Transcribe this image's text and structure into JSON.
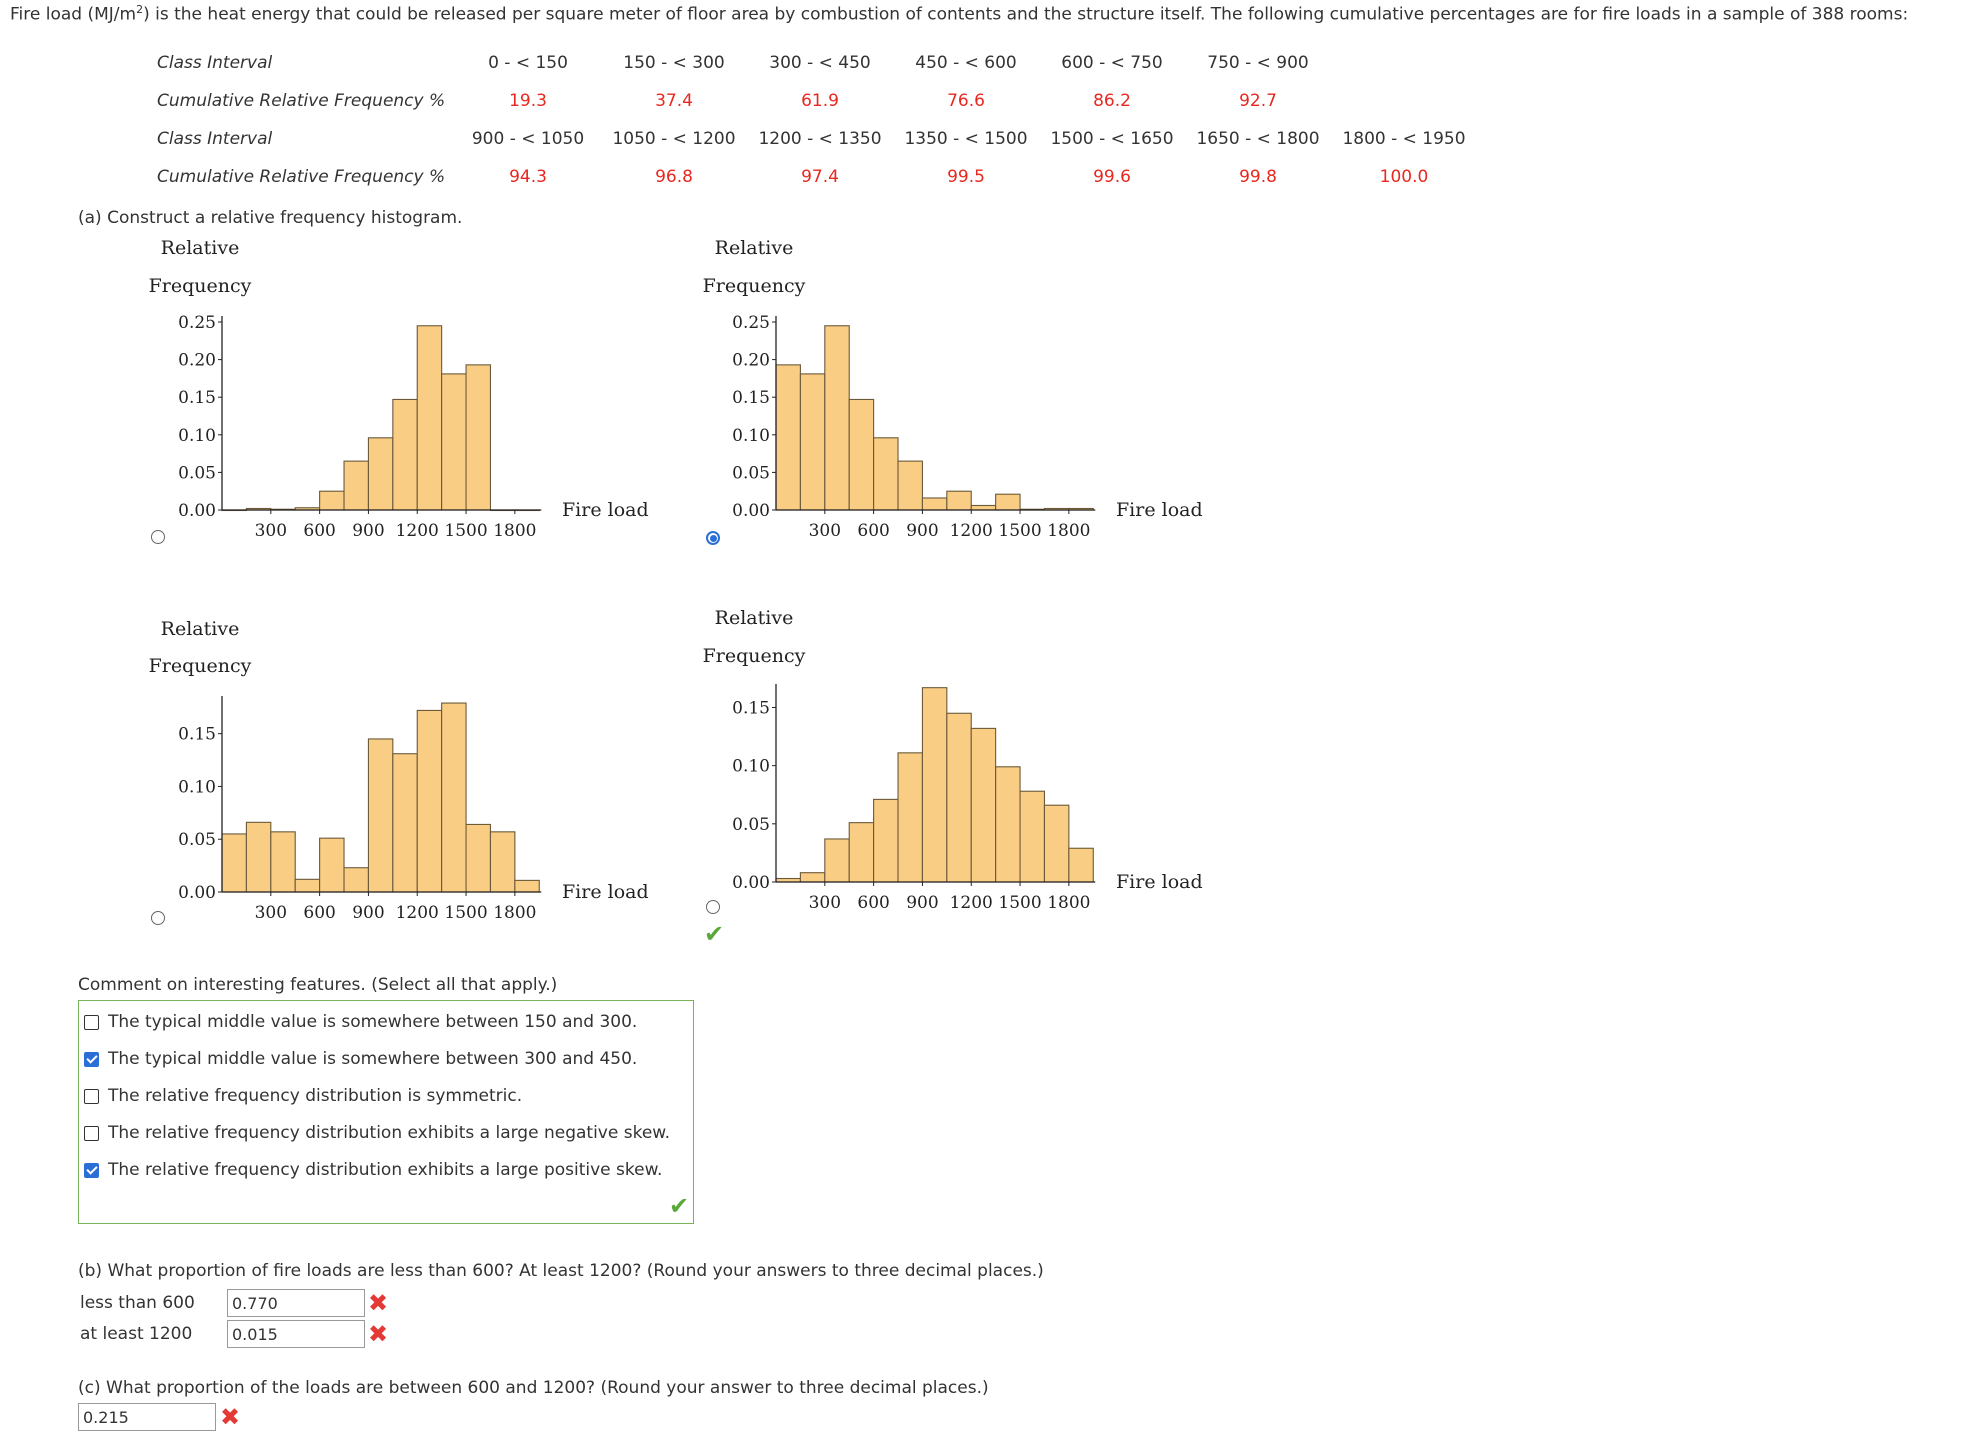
{
  "intro": {
    "before": "Fire load (MJ/m",
    "sup": "2",
    "after": ") is the heat energy that could be released per square meter of floor area by combustion of contents and the structure itself. The following cumulative percentages are for fire loads in a sample of 388 rooms:"
  },
  "table": {
    "class_interval_label": "Class Interval",
    "cum_freq_label": "Cumulative Relative Frequency %",
    "row1_intervals": [
      "0 - < 150",
      "150 - < 300",
      "300 - < 450",
      "450 - < 600",
      "600 - < 750",
      "750 - < 900"
    ],
    "row1_values": [
      "19.3",
      "37.4",
      "61.9",
      "76.6",
      "86.2",
      "92.7"
    ],
    "row2_intervals": [
      "900 - < 1050",
      "1050 - < 1200",
      "1200 - < 1350",
      "1350 - < 1500",
      "1500 - < 1650",
      "1650 - < 1800",
      "1800 - < 1950"
    ],
    "row2_values": [
      "94.3",
      "96.8",
      "97.4",
      "99.5",
      "99.6",
      "99.8",
      "100.0"
    ],
    "value_color": "#e8281f"
  },
  "part_a": {
    "question": "(a) Construct a relative frequency histogram.",
    "selected_option": 2,
    "correct_option": 4
  },
  "chart_data": [
    {
      "type": "bar",
      "option": 1,
      "ylabel_line1": "Relative",
      "ylabel_line2": "Frequency",
      "xlabel": "Fire load",
      "bin_edges": [
        0,
        150,
        300,
        450,
        600,
        750,
        900,
        1050,
        1200,
        1350,
        1500,
        1650,
        1800,
        1950
      ],
      "values": [
        0.0,
        0.002,
        0.001,
        0.003,
        0.025,
        0.065,
        0.096,
        0.147,
        0.245,
        0.181,
        0.193,
        0.0,
        0.0
      ],
      "ylim": [
        0,
        0.25
      ],
      "yticks": [
        "0.00",
        "0.05",
        "0.10",
        "0.15",
        "0.20",
        "0.25"
      ],
      "xticks": [
        "300",
        "600",
        "900",
        "1200",
        "1500",
        "1800"
      ],
      "color": "#f9cd84"
    },
    {
      "type": "bar",
      "option": 2,
      "ylabel_line1": "Relative",
      "ylabel_line2": "Frequency",
      "xlabel": "Fire load",
      "bin_edges": [
        0,
        150,
        300,
        450,
        600,
        750,
        900,
        1050,
        1200,
        1350,
        1500,
        1650,
        1800,
        1950
      ],
      "values": [
        0.193,
        0.181,
        0.245,
        0.147,
        0.096,
        0.065,
        0.016,
        0.025,
        0.006,
        0.021,
        0.001,
        0.002,
        0.002
      ],
      "ylim": [
        0,
        0.25
      ],
      "yticks": [
        "0.00",
        "0.05",
        "0.10",
        "0.15",
        "0.20",
        "0.25"
      ],
      "xticks": [
        "300",
        "600",
        "900",
        "1200",
        "1500",
        "1800"
      ],
      "color": "#f9cd84"
    },
    {
      "type": "bar",
      "option": 3,
      "ylabel_line1": "Relative",
      "ylabel_line2": "Frequency",
      "xlabel": "Fire load",
      "bin_edges": [
        0,
        150,
        300,
        450,
        600,
        750,
        900,
        1050,
        1200,
        1350,
        1500,
        1650,
        1800,
        1950
      ],
      "values": [
        0.055,
        0.066,
        0.057,
        0.012,
        0.051,
        0.023,
        0.145,
        0.131,
        0.172,
        0.179,
        0.064,
        0.057,
        0.011
      ],
      "ylim": [
        0,
        0.18
      ],
      "yticks": [
        "0.00",
        "0.05",
        "0.10",
        "0.15"
      ],
      "xticks": [
        "300",
        "600",
        "900",
        "1200",
        "1500",
        "1800"
      ],
      "color": "#f9cd84"
    },
    {
      "type": "bar",
      "option": 4,
      "ylabel_line1": "Relative",
      "ylabel_line2": "Frequency",
      "xlabel": "Fire load",
      "bin_edges": [
        0,
        150,
        300,
        450,
        600,
        750,
        900,
        1050,
        1200,
        1350,
        1500,
        1650,
        1800,
        1950
      ],
      "values": [
        0.003,
        0.008,
        0.037,
        0.051,
        0.071,
        0.111,
        0.167,
        0.145,
        0.132,
        0.099,
        0.078,
        0.066,
        0.029
      ],
      "ylim": [
        0,
        0.165
      ],
      "yticks": [
        "0.00",
        "0.05",
        "0.10",
        "0.15"
      ],
      "xticks": [
        "300",
        "600",
        "900",
        "1200",
        "1500",
        "1800"
      ],
      "color": "#f9cd84"
    }
  ],
  "comment": {
    "question": "Comment on interesting features. (Select all that apply.)",
    "options": [
      {
        "label": "The typical middle value is somewhere between 150 and 300.",
        "checked": false
      },
      {
        "label": "The typical middle value is somewhere between 300 and 450.",
        "checked": true
      },
      {
        "label": "The relative frequency distribution is symmetric.",
        "checked": false
      },
      {
        "label": "The relative frequency distribution exhibits a large negative skew.",
        "checked": false
      },
      {
        "label": "The relative frequency distribution exhibits a large positive skew.",
        "checked": true
      }
    ]
  },
  "part_b": {
    "question": "(b) What proportion of fire loads are less than 600? At least 1200? (Round your answers to three decimal places.)",
    "less_than_label": "less than 600",
    "less_than_value": "0.770",
    "at_least_label": "at least 1200",
    "at_least_value": "0.015"
  },
  "part_c": {
    "question": "(c) What proportion of the loads are between 600 and 1200? (Round your answer to three decimal places.)",
    "value": "0.215"
  },
  "colors": {
    "bar_fill": "#f9cd84",
    "correct_green": "#5aa83a",
    "wrong_red": "#e53935",
    "radio_blue": "#2a6fd6"
  }
}
